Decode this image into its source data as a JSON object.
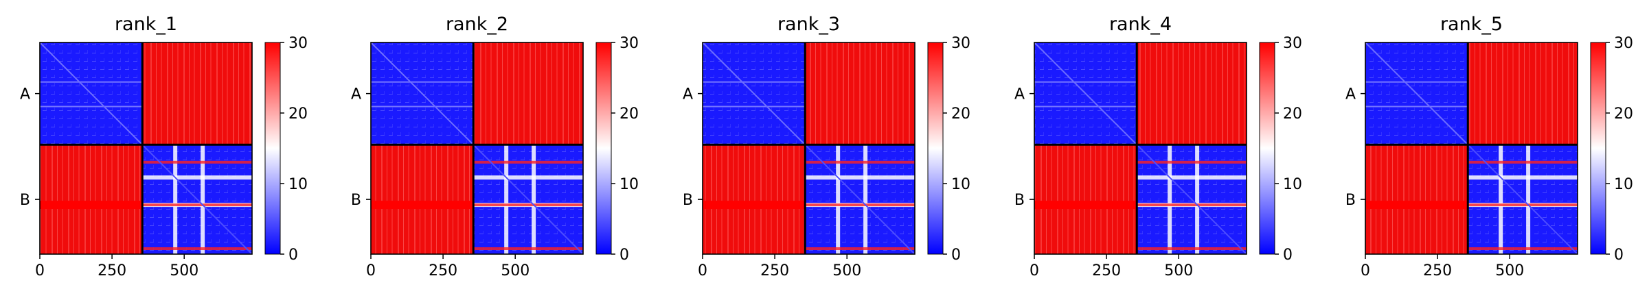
{
  "chart_data": [
    {
      "type": "heatmap",
      "title": "rank_1",
      "xlabel": "",
      "ylabel": "",
      "xlim": [
        0,
        735
      ],
      "x_ticks": [
        0,
        250,
        500
      ],
      "y_tick_labels": [
        "A",
        "B"
      ],
      "chain_boundary": 355,
      "colorbar": {
        "min": 0,
        "max": 30,
        "ticks": [
          0,
          10,
          20,
          30
        ],
        "colors": [
          "#0000ff",
          "#ffffff",
          "#ff0000"
        ]
      }
    },
    {
      "type": "heatmap",
      "title": "rank_2",
      "xlabel": "",
      "ylabel": "",
      "xlim": [
        0,
        735
      ],
      "x_ticks": [
        0,
        250,
        500
      ],
      "y_tick_labels": [
        "A",
        "B"
      ],
      "chain_boundary": 355,
      "colorbar": {
        "min": 0,
        "max": 30,
        "ticks": [
          0,
          10,
          20,
          30
        ],
        "colors": [
          "#0000ff",
          "#ffffff",
          "#ff0000"
        ]
      }
    },
    {
      "type": "heatmap",
      "title": "rank_3",
      "xlabel": "",
      "ylabel": "",
      "xlim": [
        0,
        735
      ],
      "x_ticks": [
        0,
        250,
        500
      ],
      "y_tick_labels": [
        "A",
        "B"
      ],
      "chain_boundary": 355,
      "colorbar": {
        "min": 0,
        "max": 30,
        "ticks": [
          0,
          10,
          20,
          30
        ],
        "colors": [
          "#0000ff",
          "#ffffff",
          "#ff0000"
        ]
      }
    },
    {
      "type": "heatmap",
      "title": "rank_4",
      "xlabel": "",
      "ylabel": "",
      "xlim": [
        0,
        735
      ],
      "x_ticks": [
        0,
        250,
        500
      ],
      "y_tick_labels": [
        "A",
        "B"
      ],
      "chain_boundary": 355,
      "colorbar": {
        "min": 0,
        "max": 30,
        "ticks": [
          0,
          10,
          20,
          30
        ],
        "colors": [
          "#0000ff",
          "#ffffff",
          "#ff0000"
        ]
      }
    },
    {
      "type": "heatmap",
      "title": "rank_5",
      "xlabel": "",
      "ylabel": "",
      "xlim": [
        0,
        735
      ],
      "x_ticks": [
        0,
        250,
        500
      ],
      "y_tick_labels": [
        "A",
        "B"
      ],
      "chain_boundary": 355,
      "colorbar": {
        "min": 0,
        "max": 30,
        "ticks": [
          0,
          10,
          20,
          30
        ],
        "colors": [
          "#0000ff",
          "#ffffff",
          "#ff0000"
        ]
      }
    }
  ]
}
